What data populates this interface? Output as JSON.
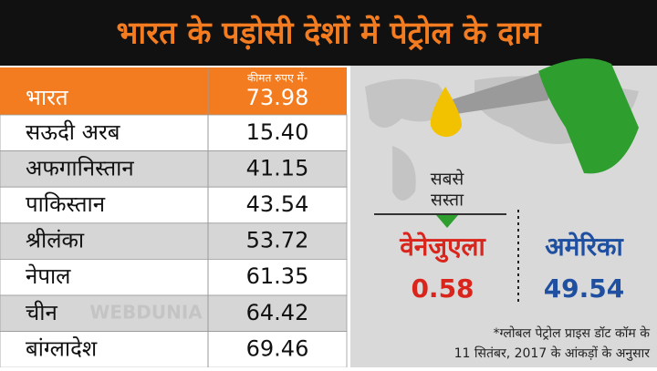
{
  "title": "भारत के पड़ोसी देशों में पेट्रोल के दाम",
  "table": {
    "header": "कीमत रुपए में-",
    "rows": [
      [
        "भारत",
        "73.98"
      ],
      [
        "सऊदी अरब",
        "15.40"
      ],
      [
        "अफगानिस्तान",
        "41.15"
      ],
      [
        "पाकिस्तान",
        "43.54"
      ],
      [
        "श्रीलंका",
        "53.72"
      ],
      [
        "नेपाल",
        "61.35"
      ],
      [
        "चीन",
        "64.42"
      ],
      [
        "बांग्लादेश",
        "69.46"
      ]
    ]
  },
  "cheapest": {
    "label": [
      "सबसे",
      "सस्ता"
    ],
    "country": "वेनेजुएला",
    "price": "0.58"
  },
  "usa": {
    "country": "अमेरिका",
    "price": "49.54"
  },
  "footnote": [
    "*ग्लोबल पेट्रोल प्राइस डॉट कॉम के",
    "11 सितंबर, 2017 के आंकड़ों के अनुसार"
  ],
  "watermark": "WEBDUNIA"
}
